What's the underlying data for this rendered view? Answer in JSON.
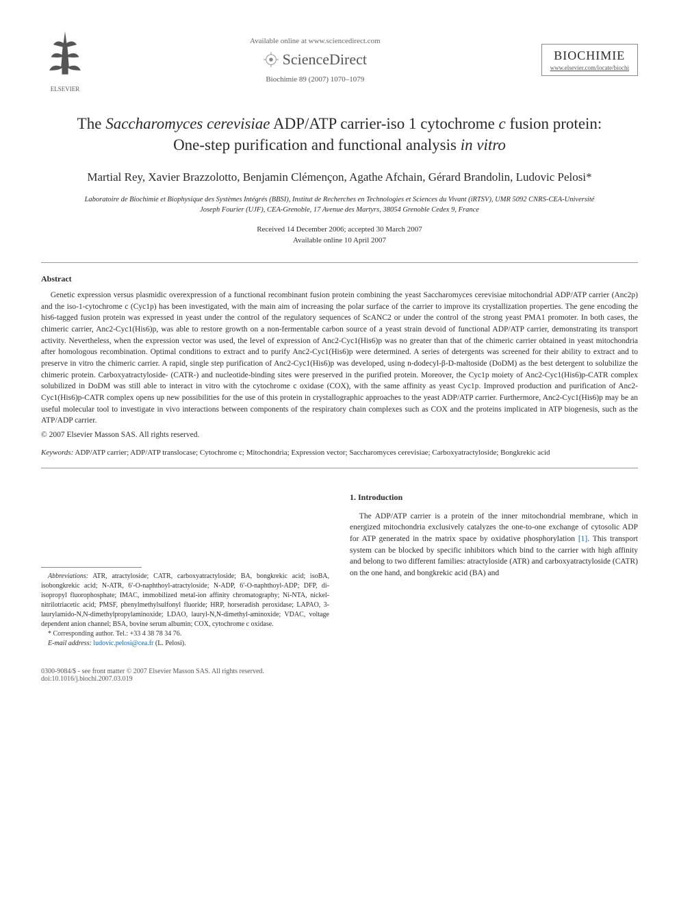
{
  "header": {
    "available_text": "Available online at www.sciencedirect.com",
    "sd_brand": "ScienceDirect",
    "journal_ref": "Biochimie 89 (2007) 1070–1079",
    "elsevier_label": "ELSEVIER",
    "journal_name": "BIOCHIMIE",
    "journal_url": "www.elsevier.com/locate/biochi"
  },
  "title_html": "The <span class='ital'>Saccharomyces cerevisiae</span> ADP/ATP carrier-iso 1 cytochrome <span class='ital'>c</span> fusion protein: One-step purification and functional analysis <span class='ital'>in vitro</span>",
  "authors": "Martial Rey, Xavier Brazzolotto, Benjamin Clémençon, Agathe Afchain, Gérard Brandolin, Ludovic Pelosi*",
  "affiliation": "Laboratoire de Biochimie et Biophysique des Systèmes Intégrés (BBSI), Institut de Recherches en Technologies et Sciences du Vivant (iRTSV), UMR 5092 CNRS-CEA-Université Joseph Fourier (UJF), CEA-Grenoble, 17 Avenue des Martyrs, 38054 Grenoble Cedex 9, France",
  "dates_line1": "Received 14 December 2006; accepted 30 March 2007",
  "dates_line2": "Available online 10 April 2007",
  "abstract_heading": "Abstract",
  "abstract_body": "Genetic expression versus plasmidic overexpression of a functional recombinant fusion protein combining the yeast Saccharomyces cerevisiae mitochondrial ADP/ATP carrier (Anc2p) and the iso-1-cytochrome c (Cyc1p) has been investigated, with the main aim of increasing the polar surface of the carrier to improve its crystallization properties. The gene encoding the his6-tagged fusion protein was expressed in yeast under the control of the regulatory sequences of ScANC2 or under the control of the strong yeast PMA1 promoter. In both cases, the chimeric carrier, Anc2-Cyc1(His6)p, was able to restore growth on a non-fermentable carbon source of a yeast strain devoid of functional ADP/ATP carrier, demonstrating its transport activity. Nevertheless, when the expression vector was used, the level of expression of Anc2-Cyc1(His6)p was no greater than that of the chimeric carrier obtained in yeast mitochondria after homologous recombination. Optimal conditions to extract and to purify Anc2-Cyc1(His6)p were determined. A series of detergents was screened for their ability to extract and to preserve in vitro the chimeric carrier. A rapid, single step purification of Anc2-Cyc1(His6)p was developed, using n-dodecyl-β-D-maltoside (DoDM) as the best detergent to solubilize the chimeric protein. Carboxyatractyloside- (CATR-) and nucleotide-binding sites were preserved in the purified protein. Moreover, the Cyc1p moiety of Anc2-Cyc1(His6)p-CATR complex solubilized in DoDM was still able to interact in vitro with the cytochrome c oxidase (COX), with the same affinity as yeast Cyc1p. Improved production and purification of Anc2-Cyc1(His6)p-CATR complex opens up new possibilities for the use of this protein in crystallographic approaches to the yeast ADP/ATP carrier. Furthermore, Anc2-Cyc1(His6)p may be an useful molecular tool to investigate in vivo interactions between components of the respiratory chain complexes such as COX and the proteins implicated in ATP biogenesis, such as the ATP/ADP carrier.",
  "copyright": "© 2007 Elsevier Masson SAS. All rights reserved.",
  "keywords_label": "Keywords:",
  "keywords_text": " ADP/ATP carrier; ADP/ATP translocase; Cytochrome c; Mitochondria; Expression vector; Saccharomyces cerevisiae; Carboxyatractyloside; Bongkrekic acid",
  "footnote": {
    "abbrev_label": "Abbreviations:",
    "abbrev_text": " ATR, atractyloside; CATR, carboxyatractyloside; BA, bongkrekic acid; isoBA, isobongkrekic acid; N-ATR, 6′-O-naphthoyl-atractyloside; N-ADP, 6′-O-naphthoyl-ADP; DFP, di-isopropyl fluorophosphate; IMAC, immobilized metal-ion affinity chromatography; Ni-NTA, nickel-nitrilotriacetic acid; PMSF, phenylmethylsulfonyl fluoride; HRP, horseradish peroxidase; LAPAO, 3-laurylamido-N,N-dimethylpropylaminoxide; LDAO, lauryl-N,N-dimethyl-aminoxide; VDAC, voltage dependent anion channel; BSA, bovine serum albumin; COX, cytochrome c oxidase.",
    "corr_label": "* Corresponding author. Tel.: +33 4 38 78 34 76.",
    "email_label": "E-mail address:",
    "email": "ludovic.pelosi@cea.fr",
    "email_person": "(L. Pelosi)."
  },
  "intro": {
    "heading": "1. Introduction",
    "para": "The ADP/ATP carrier is a protein of the inner mitochondrial membrane, which in energized mitochondria exclusively catalyzes the one-to-one exchange of cytosolic ADP for ATP generated in the matrix space by oxidative phosphorylation ",
    "ref": "[1]",
    "para2": ". This transport system can be blocked by specific inhibitors which bind to the carrier with high affinity and belong to two different families: atractyloside (ATR) and carboxyatractyloside (CATR) on the one hand, and bongkrekic acid (BA) and"
  },
  "footer": {
    "line1": "0300-9084/$ - see front matter © 2007 Elsevier Masson SAS. All rights reserved.",
    "line2": "doi:10.1016/j.biochi.2007.03.019"
  },
  "colors": {
    "text": "#2a2a2a",
    "rule": "#999999",
    "link": "#0066cc",
    "muted": "#666666"
  }
}
